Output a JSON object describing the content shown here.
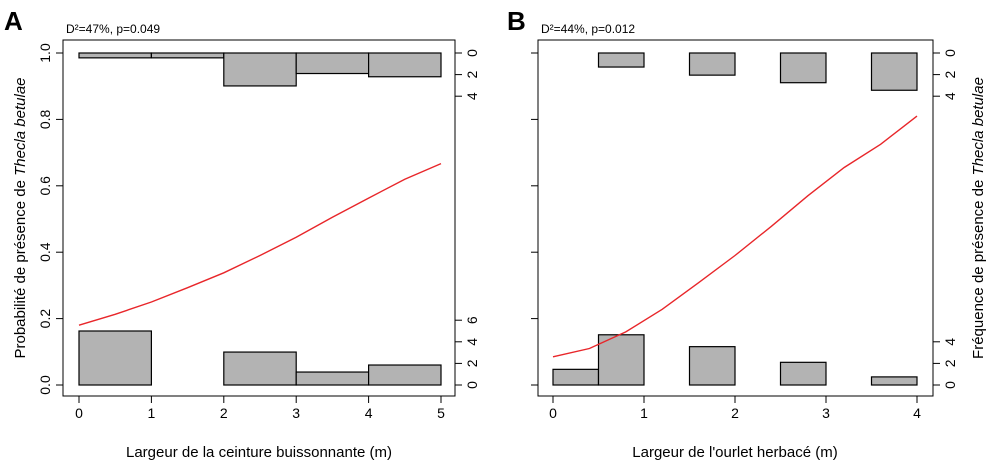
{
  "chart_data": [
    {
      "type": "line",
      "panel": "A",
      "annotation": "D²=47%, p=0.049",
      "xlabel": "Largeur de la ceinture buissonnante (m)",
      "ylabel_prefix": "Probabilité de présence de ",
      "ylabel_species": "Thecla betulae",
      "xlim": [
        0,
        5
      ],
      "ylim": [
        0,
        1
      ],
      "x_ticks": [
        "0",
        "1",
        "2",
        "3",
        "4",
        "5"
      ],
      "y_ticks": [
        "0.0",
        "0.2",
        "0.4",
        "0.6",
        "0.8",
        "1.0"
      ],
      "right_ticks_top": [
        "0",
        "2",
        "4"
      ],
      "right_ticks_bottom": [
        "0",
        "2",
        "4",
        "6"
      ],
      "curve": {
        "name": "fitted",
        "color": "#e8262a",
        "x": [
          0.0,
          0.5,
          1.0,
          1.5,
          2.0,
          2.5,
          3.0,
          3.5,
          4.0,
          4.5,
          5.0
        ],
        "y": [
          0.18,
          0.213,
          0.25,
          0.293,
          0.338,
          0.39,
          0.445,
          0.505,
          0.563,
          0.62,
          0.667
        ]
      },
      "presence_histogram": {
        "bins": [
          [
            0,
            1
          ],
          [
            1,
            2
          ],
          [
            2,
            3
          ],
          [
            3,
            4
          ],
          [
            4,
            5
          ]
        ],
        "frequency": [
          0.45,
          0.45,
          3.05,
          1.9,
          2.2
        ]
      },
      "absence_histogram": {
        "bins": [
          [
            0,
            1
          ],
          [
            2,
            3
          ],
          [
            3,
            4
          ],
          [
            4,
            5
          ]
        ],
        "frequency": [
          5.0,
          3.05,
          1.2,
          1.85
        ]
      },
      "bar_color": "#b3b3b3"
    },
    {
      "type": "line",
      "panel": "B",
      "annotation": "D²=44%, p=0.012",
      "xlabel": "Largeur de l'ourlet herbacé (m)",
      "ylabel_right_prefix": "Fréquence de présence de ",
      "ylabel_species": "Thecla betulae",
      "xlim": [
        0,
        4
      ],
      "ylim": [
        0,
        1
      ],
      "x_ticks": [
        "0",
        "1",
        "2",
        "3",
        "4"
      ],
      "right_ticks_top": [
        "0",
        "2",
        "4"
      ],
      "right_ticks_bottom": [
        "0",
        "2",
        "4"
      ],
      "curve": {
        "name": "fitted",
        "color": "#e8262a",
        "x": [
          0.0,
          0.4,
          0.8,
          1.2,
          1.6,
          2.0,
          2.4,
          2.8,
          3.2,
          3.6,
          4.0
        ],
        "y": [
          0.085,
          0.11,
          0.16,
          0.228,
          0.308,
          0.39,
          0.478,
          0.57,
          0.655,
          0.725,
          0.81
        ]
      },
      "presence_histogram": {
        "bins": [
          [
            0.5,
            1.0
          ],
          [
            1.5,
            2.0
          ],
          [
            2.5,
            3.0
          ],
          [
            3.5,
            4.0
          ]
        ],
        "frequency": [
          1.3,
          2.05,
          2.75,
          3.45
        ]
      },
      "absence_histogram": {
        "bins": [
          [
            0.0,
            0.5
          ],
          [
            0.5,
            1.0
          ],
          [
            1.5,
            2.0
          ],
          [
            2.5,
            3.0
          ],
          [
            3.5,
            4.0
          ]
        ],
        "frequency": [
          1.45,
          4.65,
          3.55,
          2.1,
          0.75
        ]
      },
      "bar_color": "#b3b3b3"
    }
  ]
}
